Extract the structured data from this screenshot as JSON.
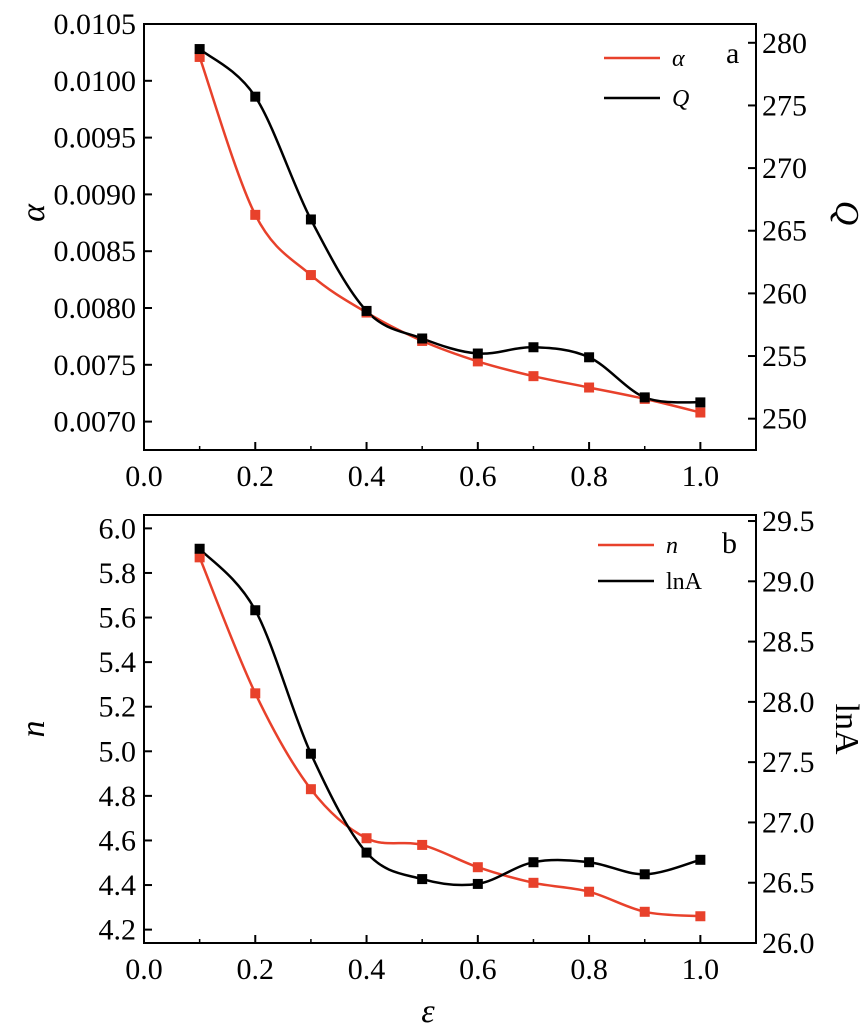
{
  "chart_data": [
    {
      "panel_label": "a",
      "type": "line",
      "x": [
        0.1,
        0.2,
        0.3,
        0.4,
        0.5,
        0.6,
        0.7,
        0.8,
        0.9,
        1.0
      ],
      "xlim": [
        0.0,
        1.1
      ],
      "xticks": [
        "0.0",
        "0.2",
        "0.4",
        "0.6",
        "0.8",
        "1.0"
      ],
      "xlabel": "",
      "left_axis": {
        "label": "α",
        "ylim": [
          0.00675,
          0.0105
        ],
        "ticks": [
          "0.0070",
          "0.0075",
          "0.0080",
          "0.0085",
          "0.0090",
          "0.0095",
          "0.0100",
          "0.0105"
        ]
      },
      "right_axis": {
        "label": "Q",
        "ylim": [
          247.5,
          281.5
        ],
        "ticks": [
          "250",
          "255",
          "260",
          "265",
          "270",
          "275",
          "280"
        ]
      },
      "series": [
        {
          "name": "α",
          "axis": "left",
          "color": "#e8412b",
          "values": [
            0.01021,
            0.00882,
            0.00829,
            0.00796,
            0.00771,
            0.00753,
            0.0074,
            0.0073,
            0.0072,
            0.00708
          ]
        },
        {
          "name": "Q",
          "axis": "right",
          "color": "#000000",
          "values": [
            279.5,
            275.7,
            265.9,
            258.6,
            256.4,
            255.2,
            255.7,
            254.9,
            251.7,
            251.3
          ]
        }
      ],
      "legend_position": "top-right",
      "grid": false
    },
    {
      "panel_label": "b",
      "type": "line",
      "x": [
        0.1,
        0.2,
        0.3,
        0.4,
        0.5,
        0.6,
        0.7,
        0.8,
        0.9,
        1.0
      ],
      "xlim": [
        0.0,
        1.1
      ],
      "xticks": [
        "0.0",
        "0.2",
        "0.4",
        "0.6",
        "0.8",
        "1.0"
      ],
      "xlabel": "ε",
      "left_axis": {
        "label": "n",
        "ylim": [
          4.14,
          6.06
        ],
        "ticks": [
          "4.2",
          "4.4",
          "4.6",
          "4.8",
          "5.0",
          "5.2",
          "5.4",
          "5.6",
          "5.8",
          "6.0"
        ]
      },
      "right_axis": {
        "label": "lnA",
        "ylim": [
          26.0,
          29.55
        ],
        "ticks": [
          "26.0",
          "26.5",
          "27.0",
          "27.5",
          "28.0",
          "28.5",
          "29.0",
          "29.5"
        ]
      },
      "series": [
        {
          "name": "n",
          "axis": "left",
          "color": "#e8412b",
          "values": [
            5.87,
            5.26,
            4.83,
            4.61,
            4.58,
            4.48,
            4.41,
            4.37,
            4.28,
            4.26
          ]
        },
        {
          "name": "lnA",
          "axis": "right",
          "color": "#000000",
          "values": [
            29.27,
            28.76,
            27.57,
            26.75,
            26.53,
            26.49,
            26.67,
            26.67,
            26.57,
            26.69
          ]
        }
      ],
      "legend_position": "top-right",
      "grid": false
    }
  ]
}
